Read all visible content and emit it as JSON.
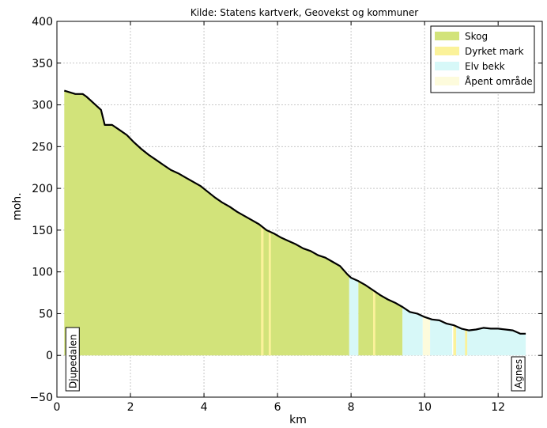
{
  "chart_data": {
    "type": "area",
    "title": "Kilde: Statens kartverk, Geovekst og kommuner",
    "xlabel": "km",
    "ylabel": "moh.",
    "xlim": [
      0,
      13.2
    ],
    "ylim": [
      -50,
      400
    ],
    "x_ticks": [
      0,
      2,
      4,
      6,
      8,
      10,
      12
    ],
    "y_ticks": [
      -50,
      0,
      50,
      100,
      150,
      200,
      250,
      300,
      350,
      400
    ],
    "grid": true,
    "legend_position": "top-right",
    "legend": [
      {
        "label": "Skog",
        "color": "#d2e37a"
      },
      {
        "label": "Dyrket mark",
        "color": "#fbf29a"
      },
      {
        "label": "Elv bekk",
        "color": "#d7f8f8"
      },
      {
        "label": "Åpent område",
        "color": "#fdfbdc"
      }
    ],
    "profile": {
      "x": [
        0.2,
        0.5,
        0.7,
        0.8,
        1.0,
        1.2,
        1.3,
        1.5,
        1.7,
        1.9,
        2.1,
        2.3,
        2.5,
        2.7,
        2.9,
        3.1,
        3.3,
        3.5,
        3.7,
        3.9,
        4.1,
        4.3,
        4.5,
        4.7,
        4.9,
        5.1,
        5.3,
        5.5,
        5.7,
        5.9,
        6.1,
        6.3,
        6.5,
        6.7,
        6.9,
        7.1,
        7.3,
        7.5,
        7.7,
        7.9,
        8.0,
        8.2,
        8.4,
        8.6,
        8.8,
        9.0,
        9.2,
        9.4,
        9.6,
        9.8,
        10.0,
        10.2,
        10.4,
        10.6,
        10.8,
        11.0,
        11.2,
        11.4,
        11.6,
        11.8,
        12.0,
        12.2,
        12.4,
        12.6,
        12.75
      ],
      "y": [
        317,
        313,
        313,
        310,
        302,
        294,
        276,
        276,
        270,
        264,
        255,
        247,
        240,
        234,
        228,
        222,
        218,
        213,
        208,
        203,
        196,
        189,
        183,
        178,
        172,
        167,
        162,
        157,
        150,
        146,
        141,
        137,
        133,
        128,
        125,
        120,
        117,
        112,
        107,
        97,
        93,
        89,
        84,
        78,
        72,
        67,
        63,
        58,
        52,
        50,
        46,
        43,
        42,
        38,
        36,
        32,
        30,
        31,
        33,
        32,
        32,
        31,
        30,
        26,
        26
      ]
    },
    "land_cover": [
      {
        "type": "Skog",
        "from": 0.2,
        "to": 7.95
      },
      {
        "type": "Dyrket mark",
        "from": 5.55,
        "to": 5.62
      },
      {
        "type": "Dyrket mark",
        "from": 5.76,
        "to": 5.82
      },
      {
        "type": "Elv bekk",
        "from": 7.95,
        "to": 8.2
      },
      {
        "type": "Skog",
        "from": 8.2,
        "to": 9.4
      },
      {
        "type": "Dyrket mark",
        "from": 8.6,
        "to": 8.66
      },
      {
        "type": "Elv bekk",
        "from": 9.4,
        "to": 9.95
      },
      {
        "type": "Åpent område",
        "from": 9.95,
        "to": 10.15
      },
      {
        "type": "Elv bekk",
        "from": 10.15,
        "to": 10.75
      },
      {
        "type": "Dyrket mark",
        "from": 10.78,
        "to": 10.86
      },
      {
        "type": "Elv bekk",
        "from": 10.86,
        "to": 11.2
      },
      {
        "type": "Dyrket mark",
        "from": 11.1,
        "to": 11.16
      },
      {
        "type": "Elv bekk",
        "from": 11.2,
        "to": 12.75
      }
    ],
    "place_labels": [
      {
        "text": "Djupedalen",
        "x": 0.2
      },
      {
        "text": "Agnes",
        "x": 12.75
      }
    ],
    "colors": {
      "profile_line": "#000000",
      "grid": "#c8c8c8"
    }
  }
}
